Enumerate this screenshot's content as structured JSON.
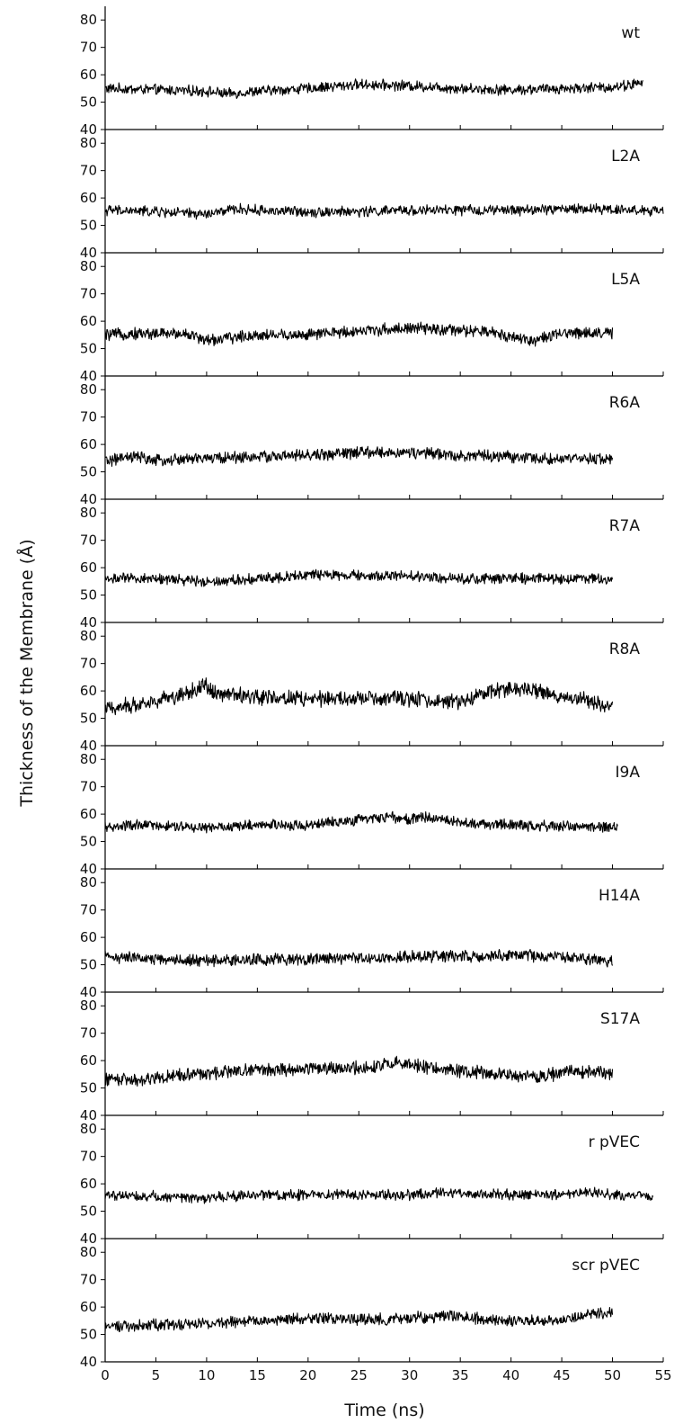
{
  "chart_data": {
    "type": "line",
    "xlabel": "Time (ns)",
    "ylabel": "Thickness of the Membrane (Å)",
    "xlim": [
      0,
      55
    ],
    "xticks": [
      0,
      5,
      10,
      15,
      20,
      25,
      30,
      35,
      40,
      45,
      50,
      55
    ],
    "ylim": [
      40,
      85
    ],
    "yticks": [
      40,
      50,
      60,
      70,
      80
    ],
    "grid": false,
    "legend": "none",
    "line_color": "#000000",
    "panels": [
      {
        "name": "wt",
        "x_end": 53,
        "noise": 1.6,
        "points": [
          [
            0,
            55
          ],
          [
            5,
            54.5
          ],
          [
            10,
            54
          ],
          [
            12,
            53
          ],
          [
            15,
            54
          ],
          [
            20,
            55
          ],
          [
            25,
            56.5
          ],
          [
            30,
            56
          ],
          [
            35,
            55
          ],
          [
            40,
            54.5
          ],
          [
            45,
            55
          ],
          [
            50,
            55.5
          ],
          [
            53,
            57
          ]
        ]
      },
      {
        "name": "L2A",
        "x_end": 55,
        "noise": 1.6,
        "points": [
          [
            0,
            55.5
          ],
          [
            5,
            55
          ],
          [
            10,
            54
          ],
          [
            13,
            56
          ],
          [
            15,
            55.5
          ],
          [
            20,
            55
          ],
          [
            25,
            55
          ],
          [
            30,
            55.5
          ],
          [
            35,
            55.5
          ],
          [
            40,
            55.5
          ],
          [
            45,
            56
          ],
          [
            50,
            56
          ],
          [
            55,
            55
          ]
        ]
      },
      {
        "name": "L5A",
        "x_end": 50,
        "noise": 1.8,
        "points": [
          [
            0,
            55
          ],
          [
            3,
            55.5
          ],
          [
            8,
            55.5
          ],
          [
            10,
            53
          ],
          [
            15,
            55
          ],
          [
            20,
            55
          ],
          [
            25,
            56.5
          ],
          [
            30,
            57.5
          ],
          [
            35,
            56.5
          ],
          [
            38,
            56
          ],
          [
            42,
            53
          ],
          [
            46,
            56
          ],
          [
            50,
            55.5
          ]
        ]
      },
      {
        "name": "R6A",
        "x_end": 50,
        "noise": 1.8,
        "points": [
          [
            0,
            54
          ],
          [
            3,
            55.5
          ],
          [
            5,
            54
          ],
          [
            10,
            55
          ],
          [
            15,
            55.5
          ],
          [
            20,
            56
          ],
          [
            25,
            57
          ],
          [
            30,
            57
          ],
          [
            35,
            56
          ],
          [
            40,
            55.5
          ],
          [
            45,
            54.5
          ],
          [
            50,
            55
          ]
        ]
      },
      {
        "name": "R7A",
        "x_end": 50,
        "noise": 1.6,
        "points": [
          [
            0,
            56
          ],
          [
            5,
            56
          ],
          [
            10,
            55
          ],
          [
            15,
            56
          ],
          [
            20,
            57.5
          ],
          [
            25,
            57
          ],
          [
            30,
            57
          ],
          [
            35,
            56
          ],
          [
            40,
            56
          ],
          [
            45,
            56
          ],
          [
            50,
            56
          ]
        ]
      },
      {
        "name": "R8A",
        "x_end": 50,
        "noise": 2.4,
        "points": [
          [
            0,
            53.5
          ],
          [
            3,
            55
          ],
          [
            7,
            58
          ],
          [
            10,
            62
          ],
          [
            11,
            59
          ],
          [
            15,
            58
          ],
          [
            20,
            57
          ],
          [
            25,
            57
          ],
          [
            30,
            57
          ],
          [
            35,
            56
          ],
          [
            38,
            60
          ],
          [
            41,
            61
          ],
          [
            45,
            58
          ],
          [
            50,
            54.5
          ]
        ]
      },
      {
        "name": "I9A",
        "x_end": 50.5,
        "noise": 1.6,
        "points": [
          [
            0,
            55
          ],
          [
            3,
            56
          ],
          [
            10,
            55
          ],
          [
            15,
            56
          ],
          [
            20,
            56
          ],
          [
            25,
            58
          ],
          [
            28,
            59
          ],
          [
            30,
            58
          ],
          [
            32,
            59
          ],
          [
            35,
            57
          ],
          [
            40,
            56
          ],
          [
            45,
            55.5
          ],
          [
            50.5,
            55
          ]
        ]
      },
      {
        "name": "H14A",
        "x_end": 50,
        "noise": 1.8,
        "points": [
          [
            0,
            53
          ],
          [
            5,
            52
          ],
          [
            10,
            51.5
          ],
          [
            15,
            52
          ],
          [
            20,
            52
          ],
          [
            25,
            52.5
          ],
          [
            30,
            53
          ],
          [
            35,
            53
          ],
          [
            40,
            53.5
          ],
          [
            45,
            53
          ],
          [
            50,
            51
          ]
        ]
      },
      {
        "name": "S17A",
        "x_end": 50,
        "noise": 2.0,
        "points": [
          [
            0,
            53.5
          ],
          [
            3,
            53
          ],
          [
            8,
            55
          ],
          [
            15,
            56.5
          ],
          [
            20,
            57
          ],
          [
            25,
            57.5
          ],
          [
            29,
            59
          ],
          [
            31,
            58
          ],
          [
            35,
            56
          ],
          [
            40,
            55
          ],
          [
            43,
            54
          ],
          [
            46,
            56.5
          ],
          [
            50,
            55
          ]
        ]
      },
      {
        "name": "r pVEC",
        "x_end": 54,
        "noise": 1.6,
        "points": [
          [
            0,
            56
          ],
          [
            5,
            55.5
          ],
          [
            10,
            55
          ],
          [
            15,
            56
          ],
          [
            20,
            56
          ],
          [
            25,
            56
          ],
          [
            30,
            56
          ],
          [
            33,
            57
          ],
          [
            35,
            56.5
          ],
          [
            40,
            56
          ],
          [
            45,
            56
          ],
          [
            48,
            57
          ],
          [
            50,
            56
          ],
          [
            54,
            55.5
          ]
        ]
      },
      {
        "name": "scr pVEC",
        "x_end": 50,
        "noise": 1.8,
        "points": [
          [
            0,
            53
          ],
          [
            5,
            53.5
          ],
          [
            10,
            54
          ],
          [
            15,
            55
          ],
          [
            20,
            56
          ],
          [
            25,
            55.5
          ],
          [
            30,
            56
          ],
          [
            35,
            57
          ],
          [
            37,
            55.5
          ],
          [
            40,
            55
          ],
          [
            45,
            55
          ],
          [
            48,
            57
          ],
          [
            50,
            58
          ]
        ]
      }
    ]
  }
}
